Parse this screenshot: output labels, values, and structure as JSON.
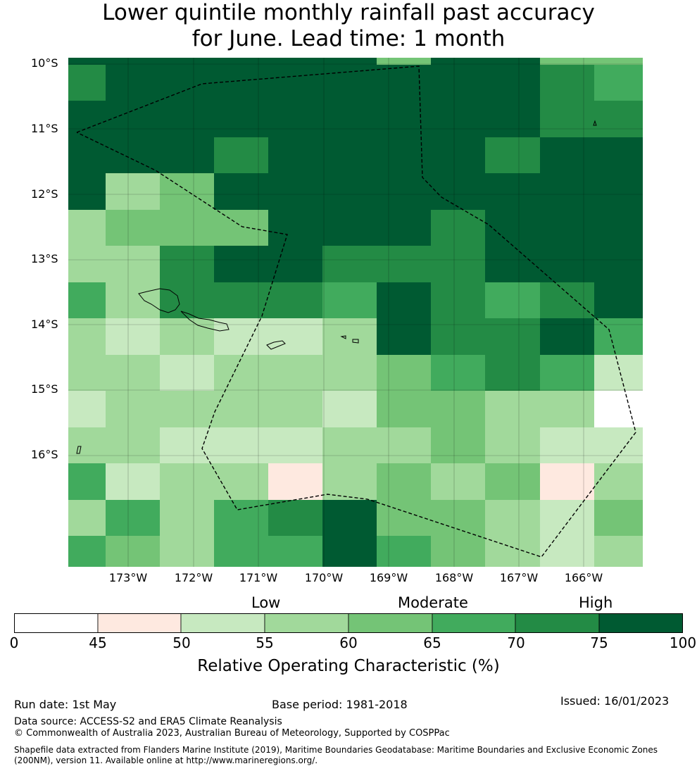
{
  "title": {
    "line1": "Lower quintile monthly rainfall past accuracy",
    "line2": "for June. Lead time: 1 month"
  },
  "map": {
    "lat_labels": [
      "10°S",
      "11°S",
      "12°S",
      "13°S",
      "14°S",
      "15°S",
      "16°S"
    ],
    "lon_labels": [
      "173°W",
      "172°W",
      "171°W",
      "170°W",
      "169°W",
      "168°W",
      "167°W",
      "166°W"
    ],
    "grid_classes": [
      [
        6,
        7,
        7,
        7,
        7,
        7,
        7,
        7,
        7,
        6,
        5
      ],
      [
        7,
        7,
        7,
        7,
        7,
        7,
        7,
        7,
        7,
        6,
        6
      ],
      [
        7,
        7,
        7,
        6,
        7,
        7,
        7,
        7,
        6,
        7,
        7
      ],
      [
        7,
        3,
        4,
        7,
        7,
        7,
        7,
        7,
        7,
        7,
        7
      ],
      [
        3,
        4,
        4,
        4,
        7,
        7,
        7,
        6,
        7,
        7,
        7
      ],
      [
        3,
        3,
        6,
        7,
        7,
        6,
        6,
        6,
        7,
        7,
        7
      ],
      [
        5,
        3,
        6,
        6,
        6,
        5,
        7,
        6,
        5,
        6,
        7
      ],
      [
        3,
        2,
        3,
        2,
        2,
        3,
        7,
        6,
        6,
        7,
        5
      ],
      [
        3,
        3,
        2,
        3,
        3,
        3,
        4,
        5,
        6,
        5,
        2
      ],
      [
        2,
        3,
        3,
        3,
        3,
        2,
        4,
        4,
        3,
        3,
        0
      ],
      [
        3,
        3,
        2,
        2,
        2,
        3,
        3,
        4,
        3,
        2,
        2
      ],
      [
        5,
        2,
        3,
        3,
        1,
        3,
        4,
        3,
        4,
        1,
        3
      ],
      [
        3,
        5,
        3,
        5,
        6,
        7,
        4,
        4,
        3,
        2,
        4
      ],
      [
        5,
        4,
        3,
        5,
        5,
        7,
        5,
        4,
        3,
        2,
        3
      ]
    ]
  },
  "colorbar": {
    "categories": [
      "Low",
      "Moderate",
      "High"
    ],
    "ticks": [
      "0",
      "45",
      "50",
      "55",
      "60",
      "65",
      "70",
      "75",
      "100"
    ],
    "colors": [
      "#ffffff",
      "#fee9e0",
      "#c7e9c0",
      "#a1d99b",
      "#74c476",
      "#41ab5d",
      "#238b45",
      "#005a32"
    ],
    "label": "Relative Operating Characteristic (%)"
  },
  "footer": {
    "run_date": "Run date: 1st May",
    "base_period": "Base period: 1981-2018",
    "issued": "Issued: 16/01/2023",
    "data_source": "Data source: ACCESS-S2 and ERA5 Climate Reanalysis",
    "copyright": "© Commonwealth of Australia 2023, Australian Bureau of Meteorology, Supported by COSPPac",
    "shapefile_line1": "Shapefile data extracted from Flanders Marine Institute (2019), Maritime Boundaries Geodatabase: Maritime Boundaries and Exclusive Economic Zones",
    "shapefile_line2": "(200NM), version 11. Available online at http://www.marineregions.org/."
  }
}
